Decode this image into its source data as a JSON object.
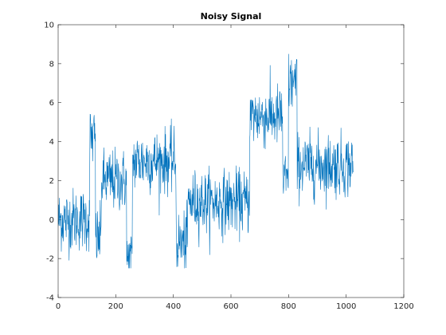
{
  "chart_data": {
    "type": "line",
    "title": "Noisy Signal",
    "xlabel": "",
    "ylabel": "",
    "xlim": [
      0,
      1200
    ],
    "ylim": [
      -4,
      10
    ],
    "x_ticks": [
      0,
      200,
      400,
      600,
      800,
      1000,
      1200
    ],
    "y_ticks": [
      -4,
      -2,
      0,
      2,
      4,
      6,
      8,
      10
    ],
    "grid": false,
    "legend": false,
    "line_color": "#0072BD",
    "axis_color": "#262626",
    "noise_approx": 0.8,
    "x_start": 1,
    "x_end": 1024,
    "level_segments": [
      {
        "x_from": 1,
        "x_to": 110,
        "level": 0.0
      },
      {
        "x_from": 110,
        "x_to": 130,
        "level": 4.2
      },
      {
        "x_from": 130,
        "x_to": 150,
        "level": -1.0
      },
      {
        "x_from": 150,
        "x_to": 238,
        "level": 2.0
      },
      {
        "x_from": 238,
        "x_to": 258,
        "level": -2.1
      },
      {
        "x_from": 258,
        "x_to": 410,
        "level": 3.0
      },
      {
        "x_from": 410,
        "x_to": 450,
        "level": -1.2
      },
      {
        "x_from": 450,
        "x_to": 665,
        "level": 0.9
      },
      {
        "x_from": 665,
        "x_to": 780,
        "level": 5.3
      },
      {
        "x_from": 780,
        "x_to": 800,
        "level": 2.0
      },
      {
        "x_from": 800,
        "x_to": 830,
        "level": 7.0
      },
      {
        "x_from": 830,
        "x_to": 1024,
        "level": 2.8
      }
    ]
  }
}
